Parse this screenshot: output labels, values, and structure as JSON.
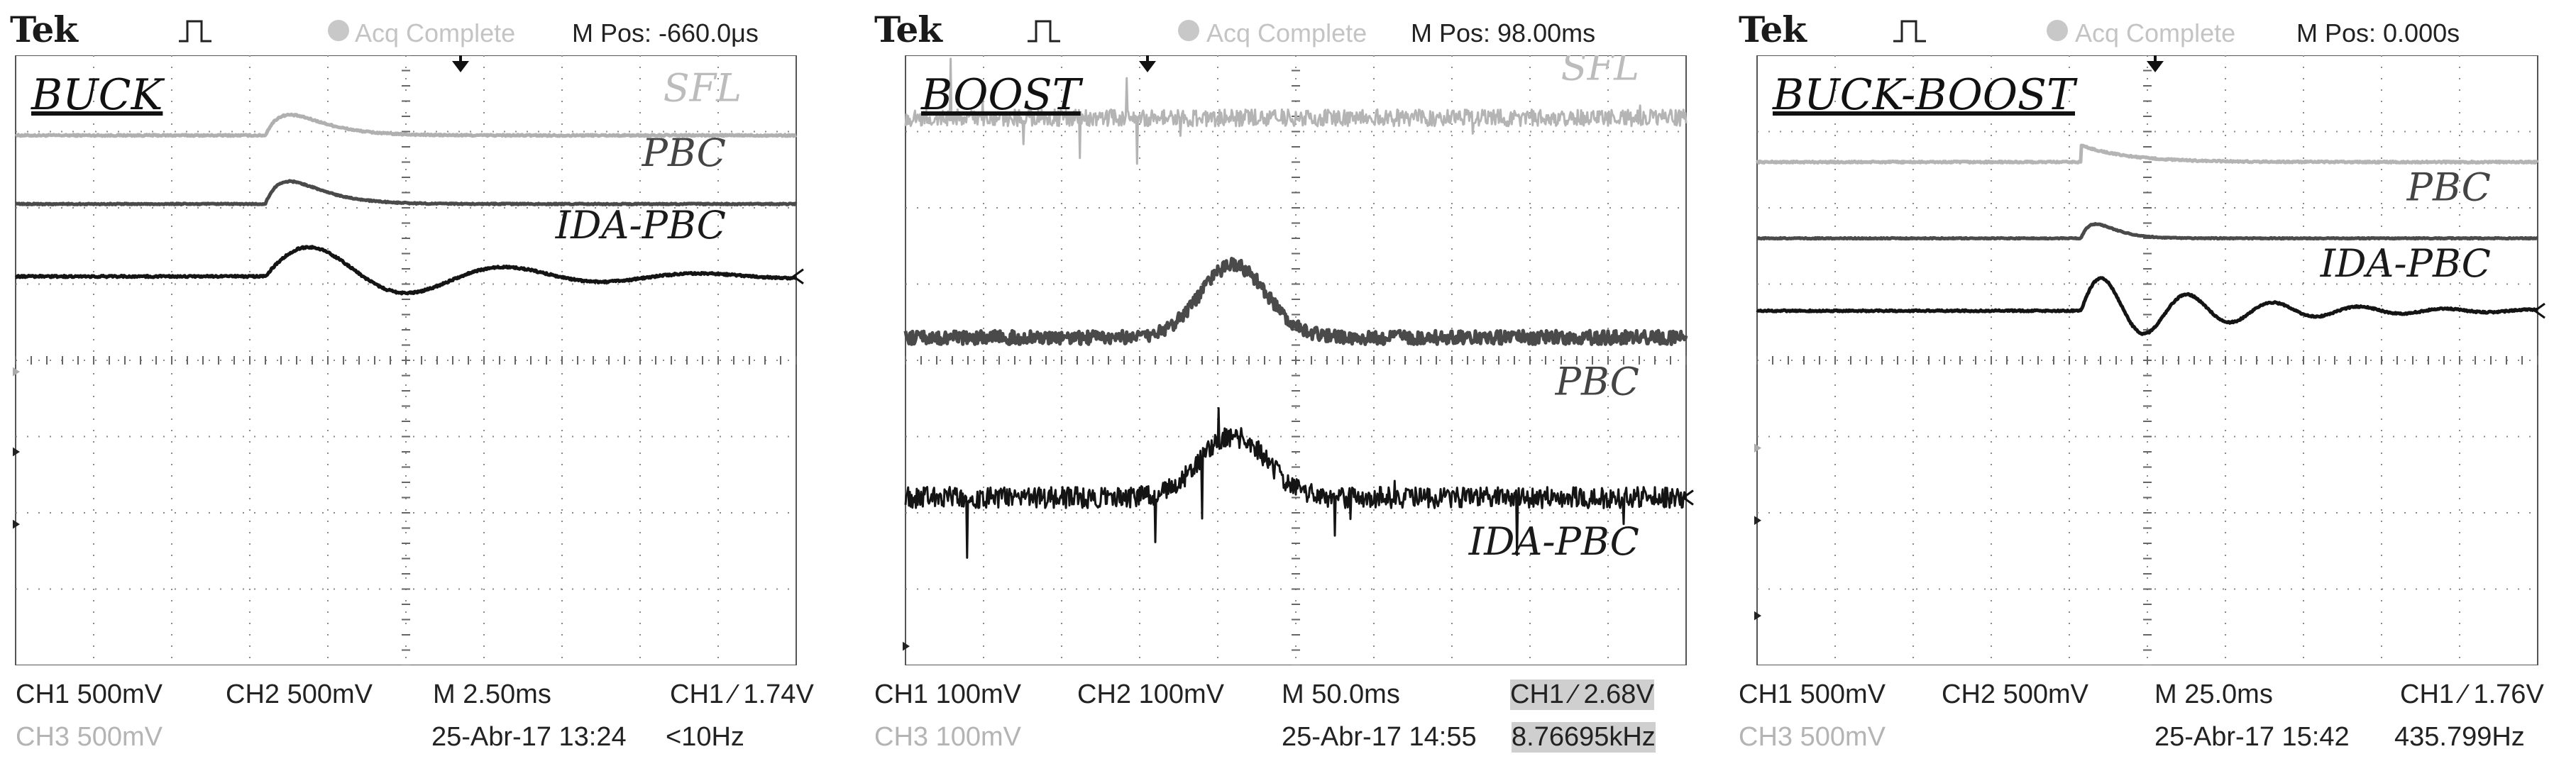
{
  "panels": [
    {
      "brand": "Tek",
      "acq_status": "Acq Complete",
      "mpos": "M Pos: -660.0μs",
      "title": "BUCK",
      "ch1": "CH1  500mV",
      "ch2": "CH2  500mV",
      "timebase": "M 2.50ms",
      "trigger": "CH1 ∕ 1.74V",
      "ch3": "CH3  500mV",
      "datetime": "25-Abr-17 13:24",
      "freq": "<10Hz",
      "ref_markers": [
        "3",
        "2",
        "1"
      ],
      "trace_labels": {
        "sfl": "SFL",
        "pbc": "PBC",
        "ida": "IDA-PBC"
      }
    },
    {
      "brand": "Tek",
      "acq_status": "Acq Complete",
      "mpos": "M Pos: 98.00ms",
      "title": "BOOST",
      "ch1": "CH1  100mV",
      "ch2": "CH2  100mV",
      "timebase": "M 50.0ms",
      "trigger": "CH1 ∕ 2.68V",
      "ch3": "CH3  100mV",
      "datetime": "25-Abr-17 14:55",
      "freq": "8.76695kHz",
      "ref_markers": [
        "3"
      ],
      "trace_labels": {
        "sfl": "SFL",
        "pbc": "PBC",
        "ida": "IDA-PBC"
      }
    },
    {
      "brand": "Tek",
      "acq_status": "Acq Complete",
      "mpos": "M Pos: 0.000s",
      "title": "BUCK-BOOST",
      "ch1": "CH1  500mV",
      "ch2": "CH2  500mV",
      "timebase": "M 25.0ms",
      "trigger": "CH1 ∕ 1.76V",
      "ch3": "CH3  500mV",
      "datetime": "25-Abr-17 15:42",
      "freq": "435.799Hz",
      "ref_markers": [
        "3",
        "2",
        "1"
      ],
      "trace_labels": {
        "sfl": "",
        "pbc": "PBC",
        "ida": "IDA-PBC"
      }
    }
  ],
  "chart_data": [
    {
      "type": "line",
      "title": "BUCK",
      "grid": true,
      "x_div": [
        0,
        10
      ],
      "y_div": [
        0,
        8
      ],
      "series": [
        {
          "name": "SFL",
          "color": "#b0b0b0",
          "base": 6.95,
          "events": [
            {
              "t": 3.2,
              "kind": "bump",
              "amp": 0.3,
              "tau": 3.0
            }
          ],
          "noise": 0.01
        },
        {
          "name": "PBC",
          "color": "#4a4a4a",
          "base": 6.05,
          "events": [
            {
              "t": 3.2,
              "kind": "bump",
              "amp": 0.34,
              "tau": 2.4
            }
          ],
          "noise": 0.008
        },
        {
          "name": "IDA-PBC",
          "color": "#141414",
          "base": 5.1,
          "events": [
            {
              "t": 3.2,
              "kind": "osc",
              "amp": 0.5,
              "tau": 2.2,
              "period": 2.5
            }
          ],
          "noise": 0.012
        }
      ]
    },
    {
      "type": "line",
      "title": "BOOST",
      "grid": true,
      "x_div": [
        0,
        10
      ],
      "y_div": [
        0,
        8
      ],
      "series": [
        {
          "name": "SFL",
          "color": "#b4b4b4",
          "base": 7.18,
          "events": [],
          "noise": 0.11
        },
        {
          "name": "PBC",
          "color": "#4a4a4a",
          "base": 4.3,
          "events": [
            {
              "t": 4.2,
              "kind": "gauss",
              "amp": 0.95,
              "width": 0.6
            }
          ],
          "noise": 0.09
        },
        {
          "name": "IDA-PBC",
          "color": "#141414",
          "base": 2.2,
          "events": [
            {
              "t": 4.2,
              "kind": "gauss",
              "amp": 0.8,
              "width": 0.6
            }
          ],
          "noise": 0.14
        }
      ]
    },
    {
      "type": "line",
      "title": "BUCK-BOOST",
      "grid": true,
      "x_div": [
        0,
        10
      ],
      "y_div": [
        0,
        8
      ],
      "series": [
        {
          "name": "",
          "color": "#b4b4b4",
          "base": 6.6,
          "events": [
            {
              "t": 4.15,
              "kind": "step",
              "amp": 0.22,
              "tau": 0.6
            }
          ],
          "noise": 0.01
        },
        {
          "name": "PBC",
          "color": "#4a4a4a",
          "base": 5.6,
          "events": [
            {
              "t": 4.15,
              "kind": "bump",
              "amp": 0.35,
              "tau": 0.4
            }
          ],
          "noise": 0.006
        },
        {
          "name": "IDA-PBC",
          "color": "#141414",
          "base": 4.65,
          "events": [
            {
              "t": 4.15,
              "kind": "osc",
              "amp": 0.5,
              "tau": 1.6,
              "period": 1.1
            }
          ],
          "noise": 0.01
        }
      ]
    }
  ]
}
